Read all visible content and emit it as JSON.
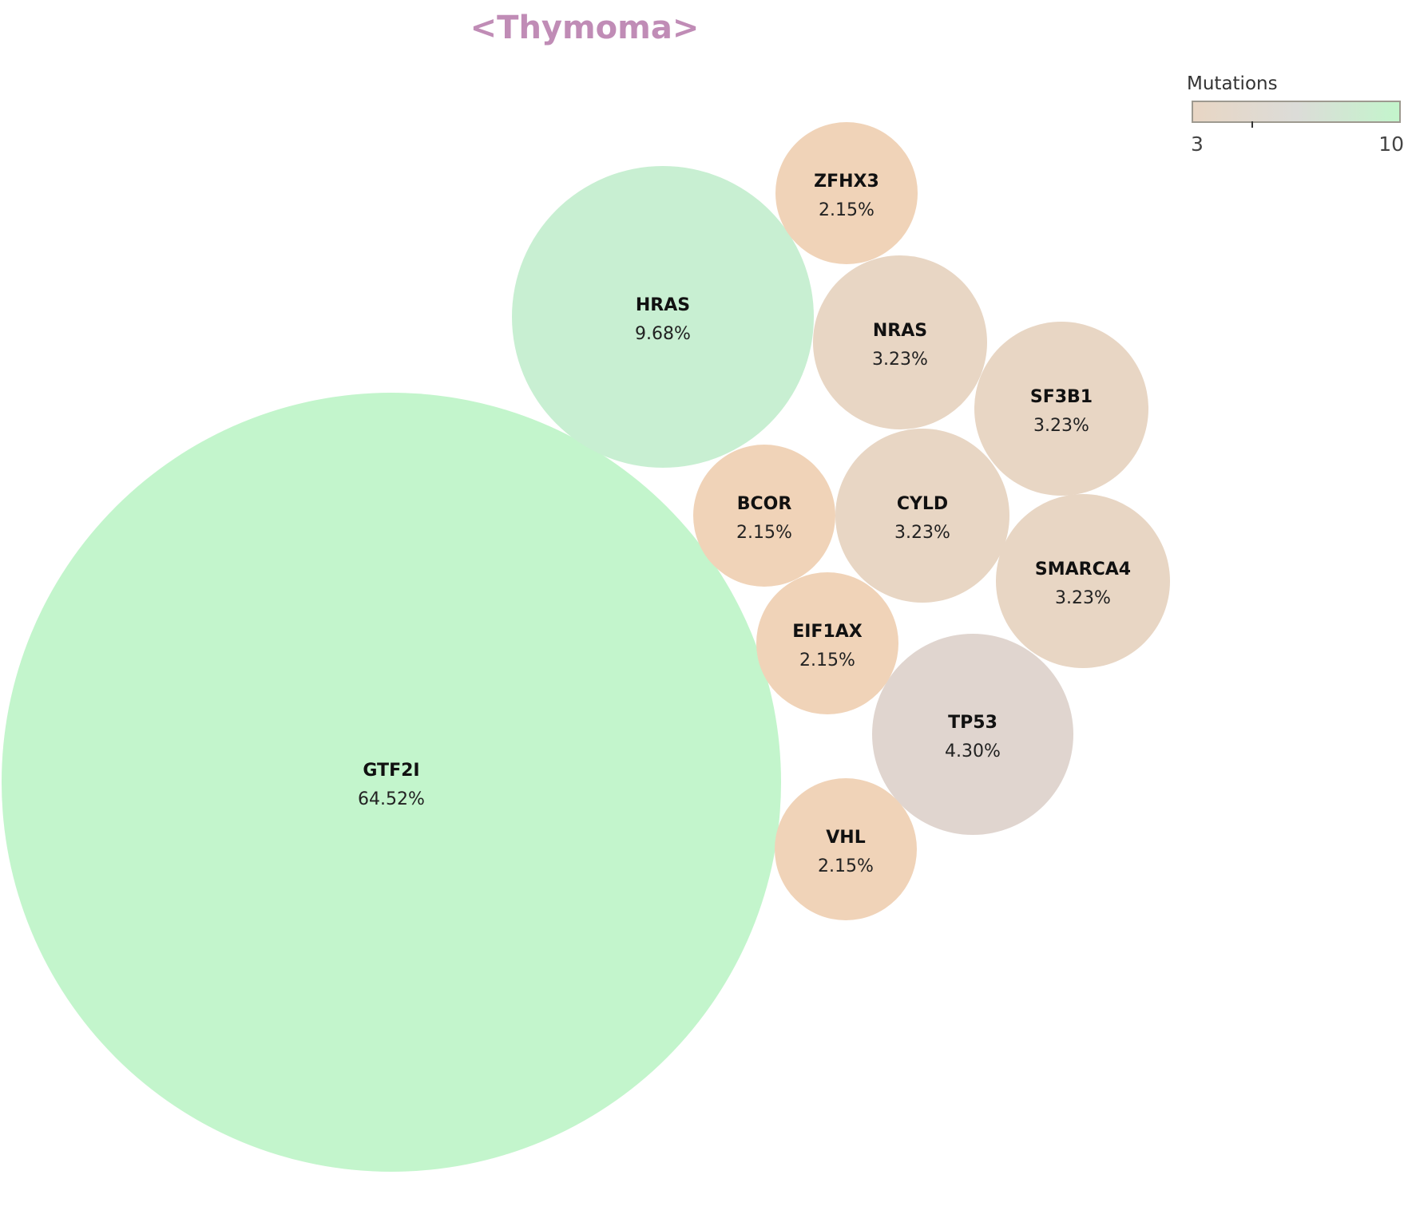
{
  "chart_data": {
    "type": "bubble",
    "title": "<Thymoma>",
    "legend": {
      "title": "Mutations",
      "min_label": "3",
      "max_label": "10",
      "colors": [
        "#e8d6c4",
        "#dcdcd8",
        "#c3f5cc"
      ],
      "placement": "top-right"
    },
    "bubbles": [
      {
        "gene": "GTF2I",
        "percent": "64.52%",
        "value": 64.52,
        "color": "#c3f5cc"
      },
      {
        "gene": "HRAS",
        "percent": "9.68%",
        "value": 9.68,
        "color": "#c8efd2"
      },
      {
        "gene": "TP53",
        "percent": "4.30%",
        "value": 4.3,
        "color": "#e0d5cf"
      },
      {
        "gene": "NRAS",
        "percent": "3.23%",
        "value": 3.23,
        "color": "#e8d6c4"
      },
      {
        "gene": "SF3B1",
        "percent": "3.23%",
        "value": 3.23,
        "color": "#e8d6c4"
      },
      {
        "gene": "CYLD",
        "percent": "3.23%",
        "value": 3.23,
        "color": "#e8d6c4"
      },
      {
        "gene": "SMARCA4",
        "percent": "3.23%",
        "value": 3.23,
        "color": "#e8d6c4"
      },
      {
        "gene": "ZFHX3",
        "percent": "2.15%",
        "value": 2.15,
        "color": "#f0d3b8"
      },
      {
        "gene": "BCOR",
        "percent": "2.15%",
        "value": 2.15,
        "color": "#f0d3b8"
      },
      {
        "gene": "EIF1AX",
        "percent": "2.15%",
        "value": 2.15,
        "color": "#f0d3b8"
      },
      {
        "gene": "VHL",
        "percent": "2.15%",
        "value": 2.15,
        "color": "#f0d3b8"
      }
    ]
  }
}
